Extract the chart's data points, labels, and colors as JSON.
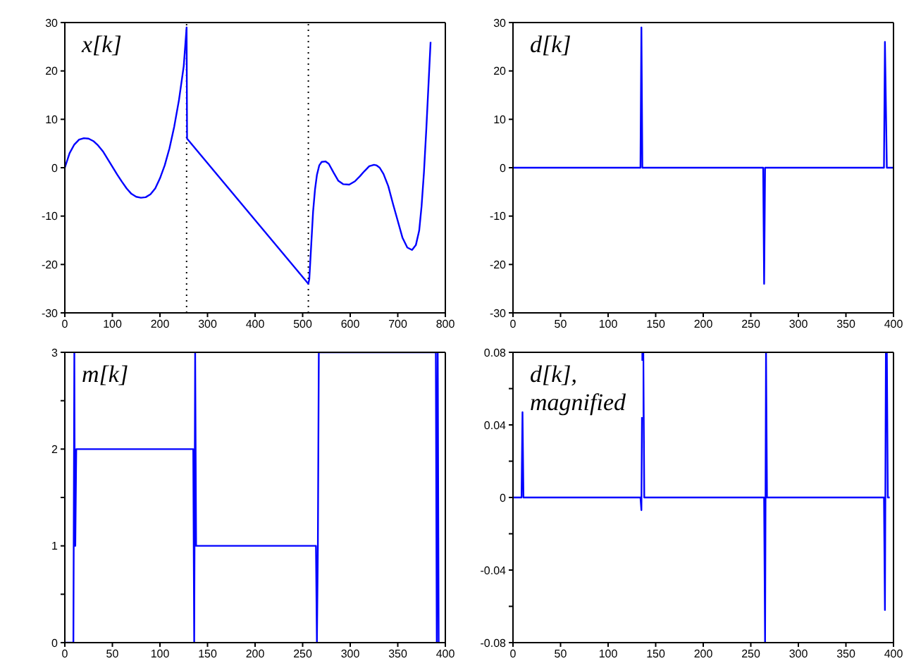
{
  "chart_data": [
    {
      "type": "line",
      "annotations": [
        "x[k]"
      ],
      "color": "#0000ff",
      "marker": "none",
      "line_style": "solid",
      "grid": false,
      "x": [
        0,
        10,
        20,
        30,
        40,
        50,
        60,
        70,
        80,
        90,
        100,
        110,
        120,
        130,
        140,
        150,
        160,
        170,
        180,
        190,
        200,
        210,
        220,
        230,
        240,
        250,
        256,
        257,
        512,
        514,
        518,
        522,
        526,
        530,
        535,
        540,
        548,
        555,
        565,
        575,
        585,
        598,
        610,
        620,
        630,
        640,
        650,
        655,
        662,
        670,
        680,
        690,
        700,
        710,
        720,
        730,
        738,
        745,
        750,
        755,
        760,
        765,
        769
      ],
      "values": [
        0,
        3,
        4.8,
        5.8,
        6.1,
        6,
        5.5,
        4.6,
        3.4,
        1.8,
        0.2,
        -1.4,
        -2.9,
        -4.3,
        -5.4,
        -6,
        -6.2,
        -6.1,
        -5.5,
        -4.3,
        -2.2,
        0.5,
        4,
        8.5,
        14,
        21,
        29,
        6,
        -24,
        -23,
        -16,
        -9,
        -4.5,
        -1.5,
        0.5,
        1.2,
        1.3,
        0.8,
        -1,
        -2.7,
        -3.4,
        -3.5,
        -2.8,
        -1.8,
        -0.7,
        0.3,
        0.6,
        0.5,
        0,
        -1.3,
        -3.8,
        -7.5,
        -11,
        -14.5,
        -16.5,
        -17,
        -16,
        -13,
        -8,
        -1,
        8,
        18,
        26
      ],
      "xlim": [
        0,
        800
      ],
      "xticks": [
        0,
        100,
        200,
        300,
        400,
        500,
        600,
        700,
        800
      ],
      "ylim": [
        -30,
        30
      ],
      "yticks": [
        -30,
        -20,
        -10,
        0,
        10,
        20,
        30
      ],
      "ref_lines": [
        {
          "axis": "x",
          "value": 256,
          "color": "#000000",
          "line_style": "dotted"
        },
        {
          "axis": "x",
          "value": 512,
          "color": "#000000",
          "line_style": "dotted"
        }
      ]
    },
    {
      "type": "line",
      "annotations": [
        "d[k]"
      ],
      "color": "#0000ff",
      "marker": "none",
      "line_style": "solid",
      "grid": false,
      "x": [
        0,
        134,
        135,
        136,
        263,
        264,
        265,
        390,
        391,
        393,
        400
      ],
      "values": [
        0,
        0,
        29,
        0,
        0,
        -24,
        0,
        0,
        26,
        0,
        0
      ],
      "xlim": [
        0,
        400
      ],
      "xticks": [
        0,
        50,
        100,
        150,
        200,
        250,
        300,
        350,
        400
      ],
      "ylim": [
        -30,
        30
      ],
      "yticks": [
        -30,
        -20,
        -10,
        0,
        10,
        20,
        30
      ]
    },
    {
      "type": "line",
      "annotations": [
        "m[k]"
      ],
      "color": "#0000ff",
      "marker": "none",
      "line_style": "solid",
      "grid": false,
      "x": [
        0,
        9,
        10,
        10.5,
        11,
        12,
        135,
        136,
        137,
        138,
        264,
        265,
        266,
        267,
        390,
        391,
        392,
        393,
        394
      ],
      "values": [
        0,
        0,
        3,
        1,
        1,
        2,
        2,
        0,
        3,
        1,
        1,
        0,
        1,
        3,
        3,
        0,
        3,
        0,
        0
      ],
      "xlim": [
        0,
        400
      ],
      "xticks": [
        0,
        50,
        100,
        150,
        200,
        250,
        300,
        350,
        400
      ],
      "ylim": [
        0,
        3
      ],
      "yticks": [
        0,
        {
          "value": 0.5,
          "label": null
        },
        1,
        {
          "value": 1.5,
          "label": null
        },
        2,
        {
          "value": 2.5,
          "label": null
        },
        3
      ]
    },
    {
      "type": "line",
      "annotations": [
        "d[k], magnified"
      ],
      "color": "#0000ff",
      "marker": "none",
      "line_style": "solid",
      "grid": false,
      "x": [
        0,
        9,
        10,
        11,
        134,
        135,
        136,
        137,
        138,
        264,
        265,
        266,
        267,
        390,
        391,
        392,
        393,
        394,
        396
      ],
      "values": [
        0,
        0,
        0.047,
        0,
        0,
        -0.007,
        0.08,
        0.08,
        0,
        0,
        -0.08,
        0.08,
        0,
        0,
        -0.062,
        0.08,
        0.08,
        0,
        0
      ],
      "xlim": [
        0,
        400
      ],
      "xticks": [
        0,
        50,
        100,
        150,
        200,
        250,
        300,
        350,
        400
      ],
      "ylim": [
        -0.08,
        0.08
      ],
      "yticks": [
        -0.08,
        {
          "value": -0.06,
          "label": null
        },
        -0.04,
        {
          "value": -0.02,
          "label": null
        },
        0,
        {
          "value": 0.02,
          "label": null
        },
        0.04,
        {
          "value": 0.06,
          "label": null
        },
        0.08
      ]
    }
  ]
}
